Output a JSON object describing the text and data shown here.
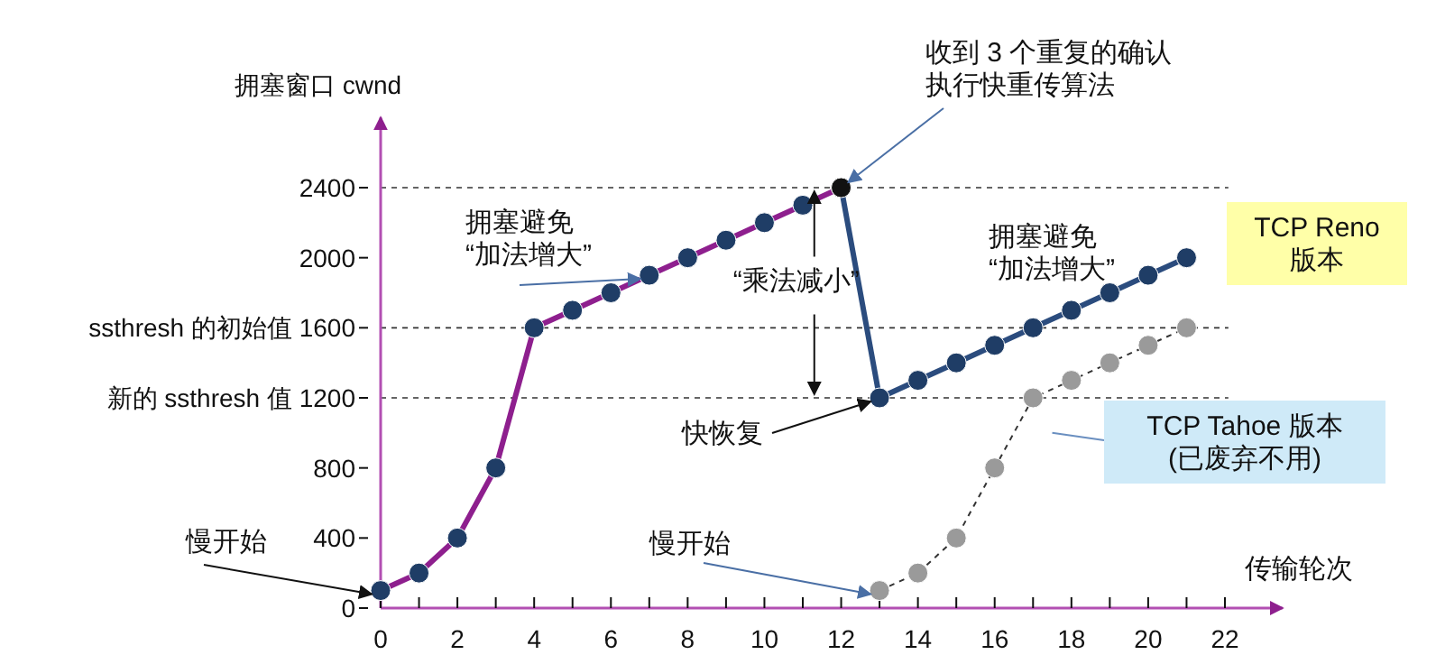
{
  "chart_data": {
    "type": "line",
    "xlabel": "传输轮次",
    "ylabel": "拥塞窗口 cwnd",
    "xlim": [
      0,
      23.5
    ],
    "ylim": [
      0,
      2800
    ],
    "xticks": [
      0,
      {
        "value": 1,
        "label": null
      },
      2,
      {
        "value": 3,
        "label": null
      },
      4,
      {
        "value": 5,
        "label": null
      },
      6,
      {
        "value": 7,
        "label": null
      },
      8,
      {
        "value": 9,
        "label": null
      },
      10,
      {
        "value": 11,
        "label": null
      },
      12,
      {
        "value": 13,
        "label": null
      },
      14,
      {
        "value": 15,
        "label": null
      },
      16,
      {
        "value": 17,
        "label": null
      },
      18,
      {
        "value": 19,
        "label": null
      },
      20,
      {
        "value": 21,
        "label": null
      },
      22
    ],
    "yticks": [
      0,
      400,
      800,
      {
        "value": 1200,
        "label": "新的 ssthresh 值 1200"
      },
      {
        "value": 1600,
        "label": "ssthresh 的初始值 1600"
      },
      2000,
      2400
    ],
    "grid": false,
    "legend": false,
    "marker": "circle",
    "series": [
      {
        "color": "#8e1f8e",
        "x": [
          0,
          1,
          2,
          3,
          4,
          5,
          6,
          7,
          8,
          9,
          10,
          11,
          12
        ],
        "values": [
          100,
          200,
          400,
          800,
          1600,
          1700,
          1800,
          1900,
          2000,
          2100,
          2200,
          2300,
          2400
        ],
        "colors": [
          "#1f3d66",
          "#1f3d66",
          "#1f3d66",
          "#1f3d66",
          "#1f3d66",
          "#1f3d66",
          "#1f3d66",
          "#1f3d66",
          "#1f3d66",
          "#1f3d66",
          "#1f3d66",
          "#1f3d66",
          "#111111"
        ]
      },
      {
        "name": "TCP Reno\n版本",
        "color": "#2b4c7e",
        "x": [
          12,
          13,
          14,
          15,
          16,
          17,
          18,
          19,
          20,
          21
        ],
        "values": [
          2400,
          1200,
          1300,
          1400,
          1500,
          1600,
          1700,
          1800,
          1900,
          2000
        ],
        "colors": [
          "#111111",
          "#1f3d66",
          "#1f3d66",
          "#1f3d66",
          "#1f3d66",
          "#1f3d66",
          "#1f3d66",
          "#1f3d66",
          "#1f3d66",
          "#1f3d66"
        ]
      },
      {
        "name": "TCP Tahoe 版本\n(已废弃不用)",
        "color": "#9a9a9a",
        "line_style": "dashed",
        "x": [
          13,
          14,
          15,
          16,
          17,
          18,
          19,
          20,
          21
        ],
        "values": [
          100,
          200,
          400,
          800,
          1200,
          1300,
          1400,
          1500,
          1600
        ]
      }
    ],
    "ref_lines": [
      {
        "axis": "y",
        "value": 2400
      },
      {
        "axis": "y",
        "value": 1600
      },
      {
        "axis": "y",
        "value": 1200
      }
    ],
    "annotations": [
      {
        "text": "慢开始",
        "x": 0,
        "y": 100
      },
      {
        "text": "拥塞避免\n“加法增大”",
        "x": 7,
        "y": 1900
      },
      {
        "text": "收到 3 个重复的确认执行快重传算法",
        "x": 12,
        "y": 2400
      },
      "“乘法减小”",
      {
        "text": "快恢复",
        "x": 13,
        "y": 1200
      },
      {
        "text": "慢开始",
        "x": 13,
        "y": 100
      },
      "拥塞避免\n“加法增大”"
    ]
  }
}
